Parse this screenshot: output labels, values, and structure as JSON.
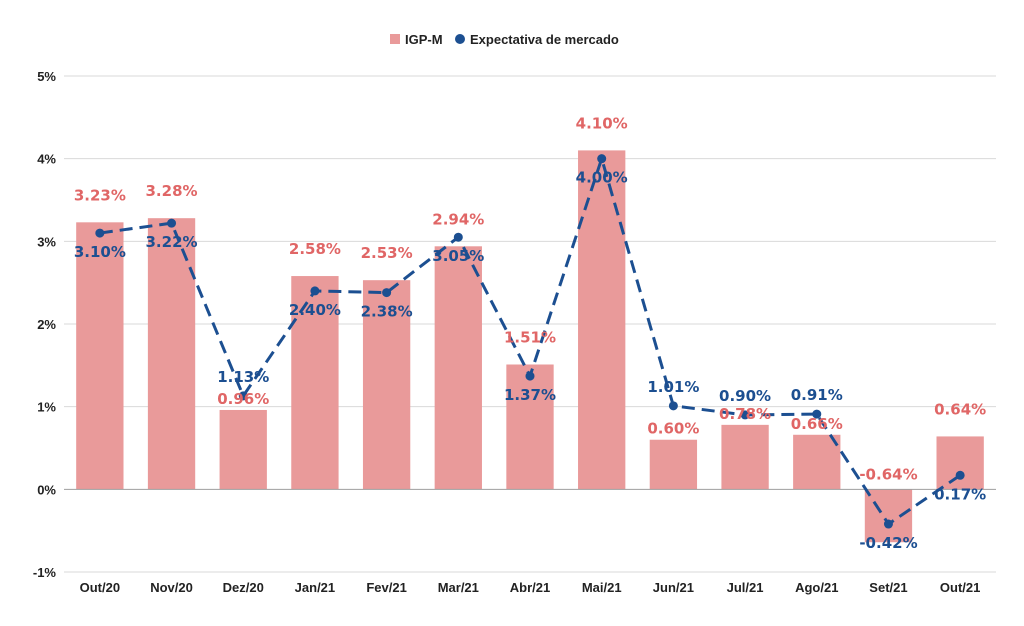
{
  "chart_data": {
    "type": "bar",
    "categories": [
      "Out/20",
      "Nov/20",
      "Dez/20",
      "Jan/21",
      "Fev/21",
      "Mar/21",
      "Abr/21",
      "Mai/21",
      "Jun/21",
      "Jul/21",
      "Ago/21",
      "Set/21",
      "Out/21"
    ],
    "series": [
      {
        "name": "IGP-M",
        "type": "bar",
        "color": "#e99a9a",
        "label_color": "#e06666",
        "values": [
          3.23,
          3.28,
          0.96,
          2.58,
          2.53,
          2.94,
          1.51,
          4.1,
          0.6,
          0.78,
          0.66,
          -0.64,
          0.64
        ],
        "labels": [
          "3.23%",
          "3.28%",
          "0.96%",
          "2.58%",
          "2.53%",
          "2.94%",
          "1.51%",
          "4.10%",
          "0.60%",
          "0.78%",
          "0.66%",
          "-0.64%",
          "0.64%"
        ]
      },
      {
        "name": "Expectativa de mercado",
        "type": "line",
        "style": "dashed",
        "color": "#1c4f91",
        "values": [
          3.1,
          3.22,
          1.13,
          2.4,
          2.38,
          3.05,
          1.37,
          4.0,
          1.01,
          0.9,
          0.91,
          -0.42,
          0.17
        ],
        "labels": [
          "3.10%",
          "3.22%",
          "1.13%",
          "2.40%",
          "2.38%",
          "3.05%",
          "1.37%",
          "4.00%",
          "1.01%",
          "0.90%",
          "0.91%",
          "-0.42%",
          "0.17%"
        ]
      }
    ],
    "ylim": [
      -1,
      5
    ],
    "yticks": [
      -1,
      0,
      1,
      2,
      3,
      4,
      5
    ],
    "ytick_labels": [
      "-1%",
      "0%",
      "1%",
      "2%",
      "3%",
      "4%",
      "5%"
    ],
    "grid": true,
    "legend": "top-center",
    "title": "",
    "xlabel": "",
    "ylabel": ""
  }
}
